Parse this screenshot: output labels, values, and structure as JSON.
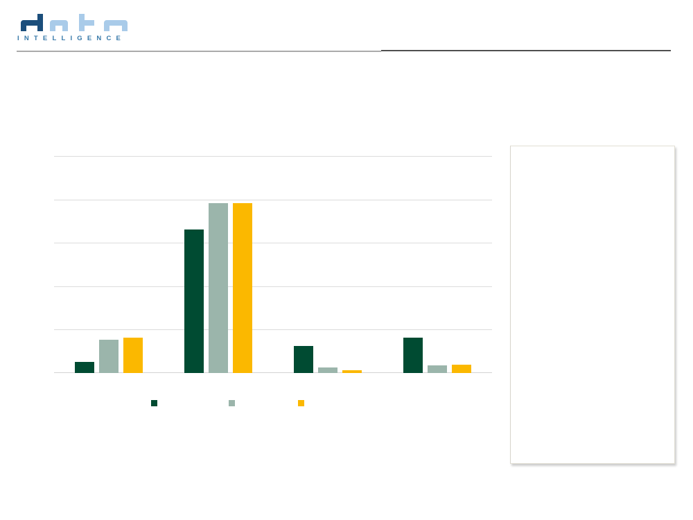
{
  "brand": {
    "logo_word": "data",
    "tagline": "INTELLIGENCE"
  },
  "colors": {
    "logo_dark_blue": "#1B4E7B",
    "logo_light_blue": "#A9CBE9",
    "tagline_blue": "#3779A9",
    "divider_left_gray": "#ABABAB",
    "divider_right_dark": "#4F4F4F",
    "gridline_gray": "#DCDCDC",
    "panel_border": "#E2DFD4"
  },
  "chart_data": {
    "type": "bar",
    "title": "",
    "xlabel": "",
    "ylabel": "",
    "categories": [
      "",
      "",
      "",
      ""
    ],
    "series": [
      {
        "name": "dark-green",
        "label": "",
        "color": "#004B32",
        "values": [
          0.25,
          3.3,
          0.62,
          0.82
        ]
      },
      {
        "name": "sage-green",
        "label": "",
        "color": "#9BB5AB",
        "values": [
          0.77,
          3.92,
          0.13,
          0.18
        ]
      },
      {
        "name": "amber",
        "label": "",
        "color": "#FBB800",
        "values": [
          0.82,
          3.92,
          0.06,
          0.19
        ]
      }
    ],
    "ylim": [
      0,
      5
    ],
    "grid_step": 1,
    "grid": "horizontal gridlines only, no tick labels or axis labels visible",
    "legend_position": "bottom",
    "note": "axes unlabeled; values expressed in gridline units (1 unit = one gridline interval)"
  },
  "side_panel": {
    "content": ""
  }
}
